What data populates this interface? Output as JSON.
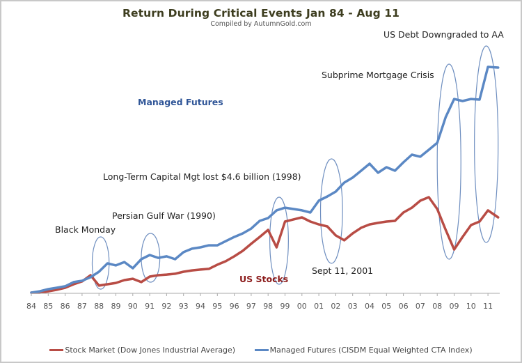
{
  "chart_data": {
    "type": "line",
    "title": "Return During Critical Events Jan 84 - Aug 11",
    "subtitle": "Compiled by AutumnGold.com",
    "xlabel": "",
    "ylabel": "",
    "y_units": "relative growth index (no y-axis shown; 1.0 = Jan 1984)",
    "x_tick_labels": [
      "84",
      "85",
      "86",
      "87",
      "88",
      "89",
      "90",
      "91",
      "92",
      "93",
      "94",
      "95",
      "96",
      "97",
      "98",
      "99",
      "00",
      "01",
      "02",
      "03",
      "04",
      "05",
      "06",
      "07",
      "08",
      "09",
      "10",
      "11"
    ],
    "x_range": [
      1984,
      2011.7
    ],
    "ylim": [
      1,
      15
    ],
    "grid": false,
    "legend_position": "bottom",
    "x": [
      1984.0,
      1984.5,
      1985.0,
      1985.5,
      1986.0,
      1986.5,
      1987.0,
      1987.5,
      1988.0,
      1988.5,
      1989.0,
      1989.5,
      1990.0,
      1990.5,
      1991.0,
      1991.5,
      1992.0,
      1992.5,
      1993.0,
      1993.5,
      1994.0,
      1994.5,
      1995.0,
      1995.5,
      1996.0,
      1996.5,
      1997.0,
      1997.5,
      1998.0,
      1998.5,
      1999.0,
      1999.5,
      2000.0,
      2000.5,
      2001.0,
      2001.5,
      2002.0,
      2002.5,
      2003.0,
      2003.5,
      2004.0,
      2004.5,
      2005.0,
      2005.5,
      2006.0,
      2006.5,
      2007.0,
      2007.5,
      2008.0,
      2008.5,
      2009.0,
      2009.5,
      2010.0,
      2010.5,
      2011.0,
      2011.6
    ],
    "series": [
      {
        "name": "Stock Market (Dow Jones Industrial Average)",
        "color": "#b84c45",
        "values": [
          1.0,
          1.0,
          1.08,
          1.17,
          1.29,
          1.5,
          1.67,
          2.04,
          1.42,
          1.5,
          1.58,
          1.75,
          1.83,
          1.63,
          1.96,
          2.04,
          2.08,
          2.13,
          2.25,
          2.33,
          2.38,
          2.42,
          2.67,
          2.88,
          3.17,
          3.5,
          3.92,
          4.33,
          4.75,
          3.71,
          5.25,
          5.38,
          5.5,
          5.25,
          5.08,
          4.96,
          4.42,
          4.13,
          4.54,
          4.88,
          5.08,
          5.17,
          5.25,
          5.29,
          5.79,
          6.08,
          6.5,
          6.71,
          6.0,
          4.75,
          3.58,
          4.33,
          5.04,
          5.25,
          5.92,
          5.5
        ]
      },
      {
        "name": "Managed Futures (CISDM Equal Weighted CTA Index)",
        "color": "#5b88c4",
        "values": [
          1.0,
          1.08,
          1.21,
          1.29,
          1.38,
          1.63,
          1.71,
          1.92,
          2.25,
          2.75,
          2.63,
          2.83,
          2.46,
          3.0,
          3.25,
          3.08,
          3.17,
          3.0,
          3.42,
          3.63,
          3.71,
          3.83,
          3.83,
          4.08,
          4.33,
          4.54,
          4.83,
          5.29,
          5.46,
          5.92,
          6.08,
          6.0,
          5.92,
          5.79,
          6.5,
          6.75,
          7.04,
          7.58,
          7.88,
          8.29,
          8.71,
          8.17,
          8.5,
          8.29,
          8.79,
          9.25,
          9.13,
          9.54,
          9.96,
          11.5,
          12.58,
          12.46,
          12.58,
          12.54,
          14.5,
          14.46
        ]
      }
    ],
    "annotations": [
      {
        "text": "Black Monday",
        "x": 1987.8
      },
      {
        "text": "Persian Gulf War (1990)",
        "x": 1991.0
      },
      {
        "text": "Long-Term Capital Mgt lost $4.6 billion (1998)",
        "x": 1998.8
      },
      {
        "text": "Sept 11, 2001",
        "x": 2001.8
      },
      {
        "text": "Subprime Mortgage Crisis",
        "x": 2009.0
      },
      {
        "text": "US Debt Downgraded to AA",
        "x": 2011.1
      }
    ],
    "series_labels": [
      {
        "text": "Managed Futures",
        "color": "#2f5597"
      },
      {
        "text": "US Stocks",
        "color": "#8b1a1a"
      }
    ],
    "event_ellipses": [
      {
        "event": "Black Monday",
        "x_range": [
          1987.6,
          1988.6
        ]
      },
      {
        "event": "Persian Gulf War (1990)",
        "x_range": [
          1990.5,
          1991.6
        ]
      },
      {
        "event": "Long-Term Capital Mgt lost $4.6 billion (1998)",
        "x_range": [
          1998.1,
          1999.2
        ]
      },
      {
        "event": "Sept 11, 2001",
        "x_range": [
          2001.1,
          2002.4
        ]
      },
      {
        "event": "Subprime Mortgage Crisis",
        "x_range": [
          2008.0,
          2009.4
        ]
      },
      {
        "event": "US Debt Downgraded to AA",
        "x_range": [
          2010.2,
          2011.6
        ]
      }
    ]
  }
}
